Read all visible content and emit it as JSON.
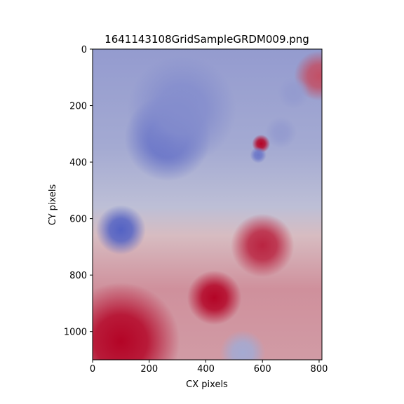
{
  "chart_data": {
    "type": "heatmap",
    "title": "1641143108GridSampleGRDM009.png",
    "xlabel": "CX pixels",
    "ylabel": "CY pixels",
    "xlim": [
      0,
      810
    ],
    "ylim": [
      1100,
      0
    ],
    "x_ticks": [
      0,
      200,
      400,
      600,
      800
    ],
    "y_ticks": [
      0,
      200,
      400,
      600,
      800,
      1000
    ],
    "colormap": "coolwarm",
    "colors": {
      "cold": "#3b4cc0",
      "neutral": "#dddcdc",
      "hot": "#b40426"
    },
    "background_gradient": [
      {
        "y": 0,
        "value": -0.45
      },
      {
        "y": 350,
        "value": -0.35
      },
      {
        "y": 560,
        "value": -0.2
      },
      {
        "y": 660,
        "value": 0.15
      },
      {
        "y": 850,
        "value": 0.35
      },
      {
        "y": 1100,
        "value": 0.3
      }
    ],
    "hotspots": [
      {
        "x": 265,
        "y": 315,
        "r": 95,
        "value": -0.75
      },
      {
        "x": 100,
        "y": 640,
        "r": 55,
        "value": -0.85
      },
      {
        "x": 430,
        "y": 880,
        "r": 60,
        "value": 1.0
      },
      {
        "x": 100,
        "y": 1035,
        "r": 130,
        "value": 1.0
      },
      {
        "x": 600,
        "y": 695,
        "r": 70,
        "value": 0.85
      },
      {
        "x": 595,
        "y": 335,
        "r": 20,
        "value": 1.0
      },
      {
        "x": 585,
        "y": 375,
        "r": 18,
        "value": -0.7
      },
      {
        "x": 800,
        "y": 95,
        "r": 55,
        "value": 0.65
      },
      {
        "x": 710,
        "y": 155,
        "r": 35,
        "value": -0.45
      },
      {
        "x": 665,
        "y": 295,
        "r": 35,
        "value": -0.45
      },
      {
        "x": 530,
        "y": 1075,
        "r": 50,
        "value": -0.35
      },
      {
        "x": 315,
        "y": 215,
        "r": 120,
        "value": -0.55
      }
    ]
  }
}
